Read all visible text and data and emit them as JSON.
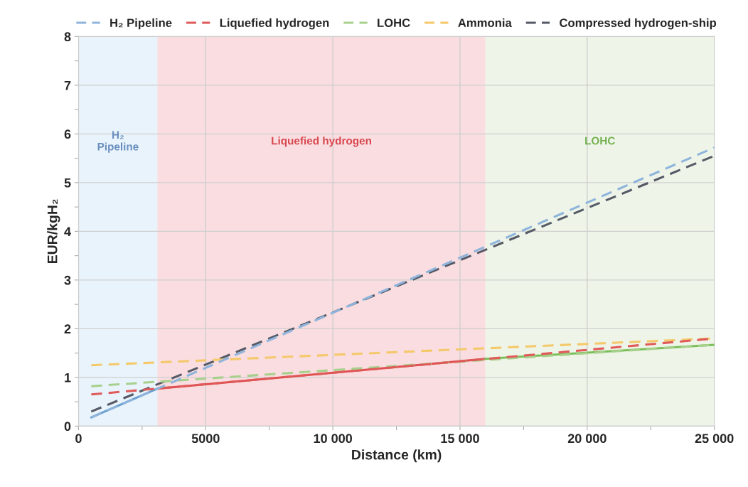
{
  "chart_data": {
    "type": "line",
    "xlabel": "Distance (km)",
    "ylabel": "EUR/kgH₂",
    "xlim": [
      0,
      25000
    ],
    "ylim": [
      0,
      8
    ],
    "xticks": [
      0,
      {
        "value": 2500,
        "label": null
      },
      5000,
      {
        "value": 7500,
        "label": null
      },
      {
        "value": 10000,
        "label": "10 000"
      },
      {
        "value": 12500,
        "label": null
      },
      {
        "value": 15000,
        "label": "15 000"
      },
      {
        "value": 17500,
        "label": null
      },
      {
        "value": 20000,
        "label": "20 000"
      },
      {
        "value": 22500,
        "label": null
      },
      {
        "value": 25000,
        "label": "25 000"
      }
    ],
    "yticks": [
      0,
      {
        "value": 0.5,
        "label": null
      },
      1,
      {
        "value": 1.5,
        "label": null
      },
      2,
      {
        "value": 2.5,
        "label": null
      },
      3,
      {
        "value": 3.5,
        "label": null
      },
      4,
      {
        "value": 4.5,
        "label": null
      },
      5,
      {
        "value": 5.5,
        "label": null
      },
      6,
      {
        "value": 6.5,
        "label": null
      },
      7,
      {
        "value": 7.5,
        "label": null
      },
      8
    ],
    "grid": true,
    "legend": "top",
    "bands": [
      {
        "axis": "x",
        "from": 0,
        "to": 3100,
        "label": "H₂\nPipeline",
        "color": "#e8f3fb"
      },
      {
        "axis": "x",
        "from": 3100,
        "to": 16000,
        "label": "Liquefied hydrogen",
        "color": "#f9dde0"
      },
      {
        "axis": "x",
        "from": 16000,
        "to": 25000,
        "label": "LOHC",
        "color": "#eef5e8"
      }
    ],
    "series": [
      {
        "name": "H₂ Pipeline",
        "color": "#8fb4dc",
        "line_style": "dashed",
        "x": [
          500,
          25000
        ],
        "values": [
          0.18,
          5.72
        ]
      },
      {
        "name": "Liquefied hydrogen",
        "color": "#e05a5a",
        "line_style": "dashed",
        "x": [
          500,
          25000
        ],
        "values": [
          0.65,
          1.8
        ]
      },
      {
        "name": "LOHC",
        "color": "#a8d08d",
        "line_style": "dashed",
        "x": [
          500,
          25000
        ],
        "values": [
          0.82,
          1.67
        ]
      },
      {
        "name": "Ammonia",
        "color": "#f5c86a",
        "line_style": "dashed",
        "x": [
          500,
          25000
        ],
        "values": [
          1.25,
          1.8
        ]
      },
      {
        "name": "Compressed hydrogen-ship",
        "color": "#555a66",
        "line_style": "dashed",
        "x": [
          500,
          25000
        ],
        "values": [
          0.3,
          5.55
        ]
      },
      {
        "color": "#6a9fd0",
        "line_style": "solid",
        "x": [
          500,
          3100
        ],
        "values": [
          0.18,
          0.77
        ]
      },
      {
        "color": "#e05050",
        "line_style": "solid",
        "x": [
          3100,
          16000
        ],
        "values": [
          0.77,
          1.38
        ]
      },
      {
        "color": "#7cbf5a",
        "line_style": "solid",
        "x": [
          16000,
          25000
        ],
        "values": [
          1.38,
          1.67
        ]
      }
    ]
  }
}
